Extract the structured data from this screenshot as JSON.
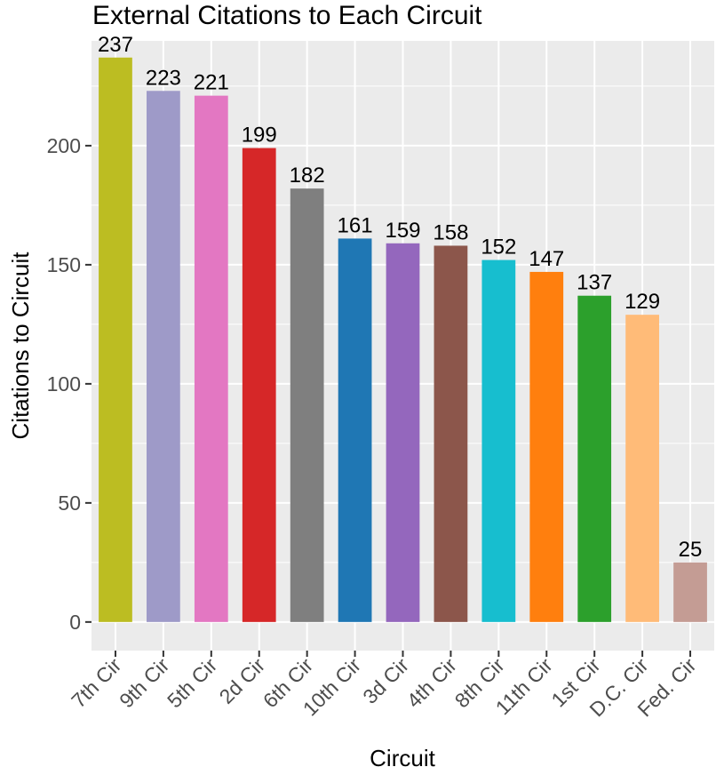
{
  "chart_data": {
    "type": "bar",
    "title": "External Citations to Each Circuit",
    "xlabel": "Circuit",
    "ylabel": "Citations to Circuit",
    "ylim": [
      -12,
      244
    ],
    "yticks": [
      0,
      50,
      100,
      150,
      200
    ],
    "minor_yticks": [
      25,
      75,
      125,
      175,
      225
    ],
    "grid": true,
    "categories": [
      "7th Cir",
      "9th Cir",
      "5th Cir",
      "2d Cir",
      "6th Cir",
      "10th Cir",
      "3d Cir",
      "4th Cir",
      "8th Cir",
      "11th Cir",
      "1st Cir",
      "D.C. Cir",
      "Fed. Cir"
    ],
    "values": [
      237,
      223,
      221,
      199,
      182,
      161,
      159,
      158,
      152,
      147,
      137,
      129,
      25
    ],
    "colors": [
      "#bcbd22",
      "#9e9ac8",
      "#e377c2",
      "#d62728",
      "#7f7f7f",
      "#1f77b4",
      "#9467bd",
      "#8c564b",
      "#17becf",
      "#ff7f0e",
      "#2ca02c",
      "#ffbb78",
      "#c49c94"
    ],
    "panel_background": "#ebebeb",
    "grid_color": "#ffffff"
  }
}
